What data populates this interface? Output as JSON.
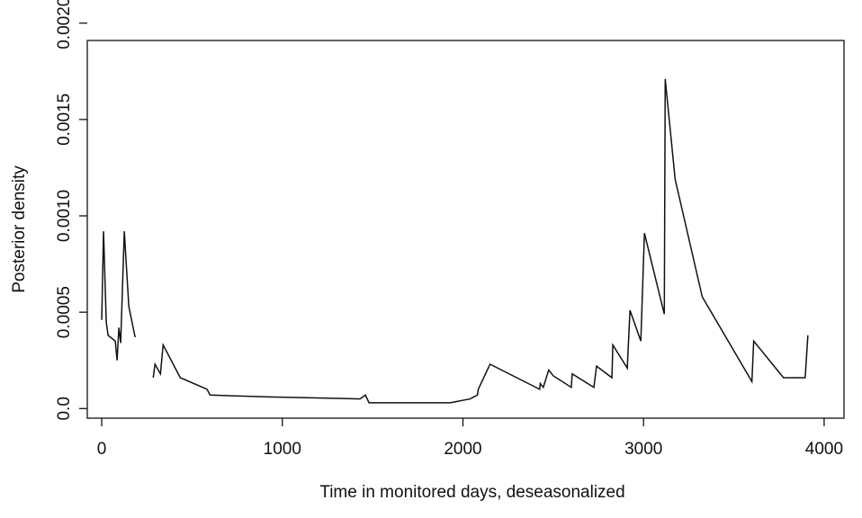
{
  "chart_data": {
    "type": "line",
    "xlabel": "Time in monitored days, deseasonalized",
    "ylabel": "Posterior density",
    "x": [
      0,
      10,
      25,
      35,
      75,
      85,
      95,
      105,
      125,
      150,
      185,
      240,
      285,
      295,
      325,
      340,
      435,
      583,
      600,
      930,
      1430,
      1460,
      1480,
      1930,
      2040,
      2080,
      2085,
      2150,
      2425,
      2428,
      2445,
      2475,
      2500,
      2600,
      2605,
      2725,
      2740,
      2825,
      2830,
      2910,
      2925,
      2985,
      3005,
      3115,
      3120,
      3175,
      3325,
      3600,
      3610,
      3775,
      3895,
      3910
    ],
    "values": [
      0.00046,
      0.00092,
      0.00045,
      0.00038,
      0.00035,
      0.00025,
      0.00042,
      0.00034,
      0.00092,
      0.00053,
      0.00037,
      null,
      0.00016,
      0.00023,
      0.00018,
      0.00033,
      0.00016,
      0.0001,
      7e-05,
      6e-05,
      5e-05,
      7e-05,
      3e-05,
      3e-05,
      5e-05,
      7e-05,
      0.0001,
      0.00023,
      0.0001,
      0.00013,
      0.00011,
      0.0002,
      0.00017,
      0.00011,
      0.00018,
      0.00011,
      0.00022,
      0.00016,
      0.00033,
      0.00021,
      0.00051,
      0.00035,
      0.00091,
      0.00049,
      0.00171,
      0.00119,
      0.00058,
      0.00014,
      0.00035,
      0.00016,
      0.00016,
      0.00038
    ],
    "color": "#111111",
    "xlim": [
      -80,
      4110
    ],
    "ylim": [
      -5e-05,
      0.00191
    ],
    "xticks": [
      0,
      1000,
      2000,
      3000,
      4000
    ],
    "yticks": [
      {
        "value": 0,
        "label": "0.0"
      },
      0.0005,
      {
        "value": 0.001,
        "label": "0.0010"
      },
      0.0015,
      {
        "value": 0.002,
        "label": "0.0020"
      }
    ]
  }
}
